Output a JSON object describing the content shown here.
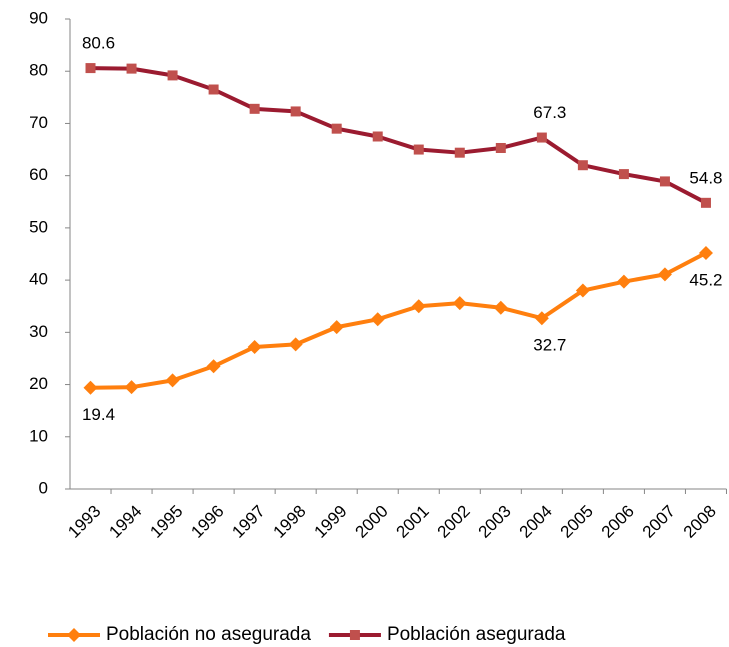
{
  "chart_data": {
    "type": "line",
    "categories": [
      "1993",
      "1994",
      "1995",
      "1996",
      "1997",
      "1998",
      "1999",
      "2000",
      "2001",
      "2002",
      "2003",
      "2004",
      "2005",
      "2006",
      "2007",
      "2008"
    ],
    "series": [
      {
        "name": "Población no asegurada",
        "color": "#ff7f0e",
        "marker": "diamond",
        "values": [
          19.4,
          19.5,
          20.8,
          23.5,
          27.2,
          27.7,
          31.0,
          32.5,
          35.0,
          35.6,
          34.7,
          32.7,
          38.0,
          39.7,
          41.1,
          45.2
        ],
        "value_labels": [
          "19.4",
          null,
          null,
          null,
          null,
          null,
          null,
          null,
          null,
          null,
          null,
          "32.7",
          null,
          null,
          null,
          "45.2"
        ]
      },
      {
        "name": "Población asegurada",
        "color": "#9b1b30",
        "marker_color": "#c0504d",
        "marker": "square",
        "values": [
          80.6,
          80.5,
          79.2,
          76.5,
          72.8,
          72.3,
          69.0,
          67.5,
          65.0,
          64.4,
          65.3,
          67.3,
          62.0,
          60.3,
          58.9,
          54.8
        ],
        "value_labels": [
          "80.6",
          null,
          null,
          null,
          null,
          null,
          null,
          null,
          null,
          null,
          null,
          "67.3",
          null,
          null,
          null,
          "54.8"
        ]
      }
    ],
    "ylim": [
      0,
      90
    ],
    "yticks": [
      0,
      10,
      20,
      30,
      40,
      50,
      60,
      70,
      80,
      90
    ],
    "grid": false,
    "legend": "bottom"
  }
}
